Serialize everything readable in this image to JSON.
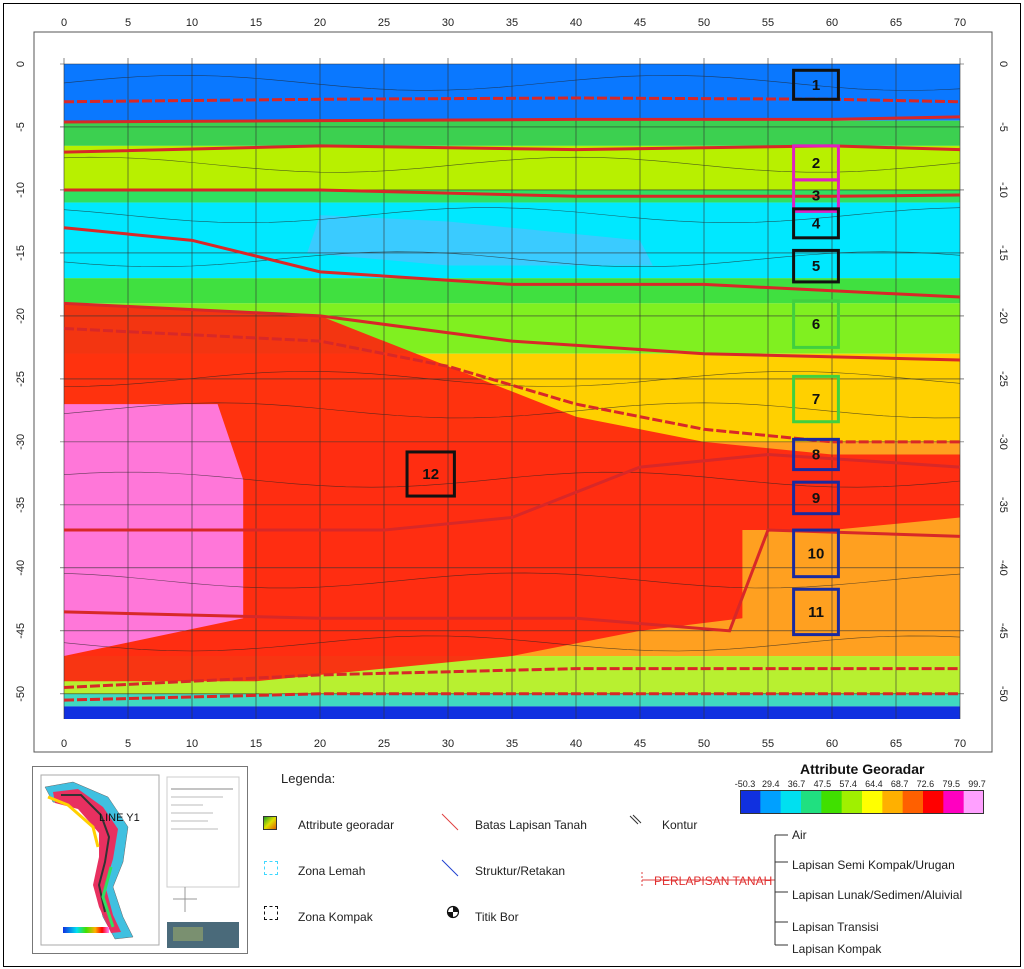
{
  "chart_data": {
    "type": "heatmap",
    "title": "",
    "xlabel": "",
    "ylabel": "",
    "xlim": [
      0,
      70
    ],
    "ylim": [
      -52,
      0
    ],
    "x_ticks": [
      "0",
      "5",
      "10",
      "15",
      "20",
      "25",
      "30",
      "35",
      "40",
      "45",
      "50",
      "55",
      "60",
      "65",
      "70"
    ],
    "y_ticks": [
      "0",
      "-5",
      "-10",
      "-15",
      "-20",
      "-25",
      "-30",
      "-35",
      "-40",
      "-45",
      "-50"
    ],
    "grid": true,
    "colorbar": {
      "title": "Attribute Georadar",
      "labels": [
        "-50.3",
        "29.4",
        "36.7",
        "47.5",
        "57.4",
        "64.4",
        "68.7",
        "72.6",
        "79.5",
        "99.7"
      ],
      "colors": [
        "#1030e0",
        "#00a0ff",
        "#00e0f0",
        "#20e080",
        "#40e000",
        "#a0f000",
        "#ffff00",
        "#ffb000",
        "#ff6000",
        "#ff0000",
        "#ff00c0",
        "#ffa0ff"
      ]
    },
    "bands": [
      {
        "from": 0,
        "to": -4.5,
        "color": "#0a78ff"
      },
      {
        "from": -4.5,
        "to": -6.5,
        "color": "#3cd050"
      },
      {
        "from": -6.5,
        "to": -10,
        "color": "#b8f000"
      },
      {
        "from": -10,
        "to": -11,
        "color": "#30e060"
      },
      {
        "from": -11,
        "to": -17,
        "color": "#00e8ff"
      },
      {
        "from": -17,
        "to": -19,
        "color": "#40e040"
      },
      {
        "from": -19,
        "to": -23,
        "color": "#80f020"
      },
      {
        "from": -23,
        "to": -30,
        "color": "#ffd000"
      },
      {
        "from": -30,
        "to": -47,
        "color": "#ffa020"
      },
      {
        "from": -47,
        "to": -50,
        "color": "#b8f030"
      },
      {
        "from": -50,
        "to": -51,
        "color": "#40d8c0"
      },
      {
        "from": -51,
        "to": -52,
        "color": "#1030e0"
      }
    ],
    "anomalies": [
      {
        "name": "compact-zone",
        "points": [
          [
            0,
            -19
          ],
          [
            20,
            -20
          ],
          [
            30,
            -24
          ],
          [
            40,
            -28
          ],
          [
            50,
            -30
          ],
          [
            60,
            -31
          ],
          [
            70,
            -31
          ],
          [
            70,
            -36
          ],
          [
            60,
            -37
          ],
          [
            53,
            -37
          ],
          [
            53,
            -44
          ],
          [
            45,
            -45
          ],
          [
            35,
            -47
          ],
          [
            25,
            -48
          ],
          [
            15,
            -49
          ],
          [
            0,
            -49
          ]
        ],
        "color": "#ff2010"
      },
      {
        "name": "soft-zone",
        "points": [
          [
            0,
            -27
          ],
          [
            12,
            -27
          ],
          [
            14,
            -33
          ],
          [
            14,
            -44
          ],
          [
            0,
            -47
          ]
        ],
        "color": "#ff80f0"
      },
      {
        "name": "low-zone",
        "points": [
          [
            20,
            -12
          ],
          [
            30,
            -12.5
          ],
          [
            45,
            -14
          ],
          [
            46,
            -16
          ],
          [
            30,
            -16
          ],
          [
            19,
            -15
          ]
        ],
        "color": "#40c8ff"
      }
    ],
    "layer_boundaries": [
      {
        "points": [
          [
            0,
            -3
          ],
          [
            20,
            -2.8
          ],
          [
            40,
            -2.7
          ],
          [
            60,
            -2.8
          ],
          [
            70,
            -3
          ]
        ],
        "dashed": true
      },
      {
        "points": [
          [
            0,
            -4.6
          ],
          [
            20,
            -4.5
          ],
          [
            40,
            -4.4
          ],
          [
            60,
            -4.4
          ],
          [
            70,
            -4.2
          ]
        ],
        "dashed": false
      },
      {
        "points": [
          [
            0,
            -7
          ],
          [
            20,
            -6.5
          ],
          [
            40,
            -6.8
          ],
          [
            60,
            -6.5
          ],
          [
            70,
            -6.8
          ]
        ],
        "dashed": false
      },
      {
        "points": [
          [
            0,
            -10
          ],
          [
            20,
            -10
          ],
          [
            40,
            -10.5
          ],
          [
            60,
            -10.5
          ],
          [
            70,
            -10.4
          ]
        ],
        "dashed": false
      },
      {
        "points": [
          [
            0,
            -13
          ],
          [
            10,
            -14
          ],
          [
            20,
            -16.5
          ],
          [
            35,
            -17.5
          ],
          [
            50,
            -17.5
          ],
          [
            70,
            -18.5
          ]
        ],
        "dashed": false
      },
      {
        "points": [
          [
            0,
            -19
          ],
          [
            20,
            -20
          ],
          [
            35,
            -22
          ],
          [
            50,
            -23
          ],
          [
            70,
            -23.5
          ]
        ],
        "dashed": false
      },
      {
        "points": [
          [
            0,
            -21
          ],
          [
            20,
            -22
          ],
          [
            30,
            -24
          ],
          [
            40,
            -27
          ],
          [
            50,
            -29
          ],
          [
            60,
            -30
          ],
          [
            70,
            -30
          ]
        ],
        "dashed": true
      },
      {
        "points": [
          [
            0,
            -37
          ],
          [
            25,
            -37
          ],
          [
            35,
            -36
          ],
          [
            40,
            -34
          ],
          [
            45,
            -32
          ],
          [
            55,
            -31
          ],
          [
            70,
            -32
          ]
        ],
        "dashed": false
      },
      {
        "points": [
          [
            0,
            -43.5
          ],
          [
            20,
            -44
          ],
          [
            40,
            -44
          ],
          [
            52,
            -45
          ],
          [
            55,
            -37
          ],
          [
            70,
            -37.5
          ]
        ],
        "dashed": false
      },
      {
        "points": [
          [
            0,
            -49.5
          ],
          [
            20,
            -48.5
          ],
          [
            40,
            -48
          ],
          [
            55,
            -48
          ],
          [
            70,
            -48
          ]
        ],
        "dashed": true
      },
      {
        "points": [
          [
            0,
            -50.5
          ],
          [
            20,
            -50
          ],
          [
            40,
            -50
          ],
          [
            70,
            -50
          ]
        ],
        "dashed": true
      }
    ],
    "boxes": [
      {
        "label": "1",
        "x0": 57,
        "x1": 60.5,
        "y0": -0.5,
        "y1": -2.8,
        "color": "#111111"
      },
      {
        "label": "2",
        "x0": 57,
        "x1": 60.5,
        "y0": -6.5,
        "y1": -9.2,
        "color": "#e020c0"
      },
      {
        "label": "3",
        "x0": 57,
        "x1": 60.5,
        "y0": -9.2,
        "y1": -11.7,
        "color": "#e020c0"
      },
      {
        "label": "4",
        "x0": 57,
        "x1": 60.5,
        "y0": -11.5,
        "y1": -13.8,
        "color": "#111111"
      },
      {
        "label": "5",
        "x0": 57,
        "x1": 60.5,
        "y0": -14.8,
        "y1": -17.3,
        "color": "#111111"
      },
      {
        "label": "6",
        "x0": 57,
        "x1": 60.5,
        "y0": -18.8,
        "y1": -22.5,
        "color": "#40d040"
      },
      {
        "label": "7",
        "x0": 57,
        "x1": 60.5,
        "y0": -24.8,
        "y1": -28.4,
        "color": "#40d040"
      },
      {
        "label": "8",
        "x0": 57,
        "x1": 60.5,
        "y0": -29.8,
        "y1": -32.2,
        "color": "#1a2aa0"
      },
      {
        "label": "9",
        "x0": 57,
        "x1": 60.5,
        "y0": -33.2,
        "y1": -35.7,
        "color": "#1a2aa0"
      },
      {
        "label": "10",
        "x0": 57,
        "x1": 60.5,
        "y0": -37,
        "y1": -40.7,
        "color": "#1a2aa0"
      },
      {
        "label": "11",
        "x0": 57,
        "x1": 60.5,
        "y0": -41.7,
        "y1": -45.3,
        "color": "#1a2aa0"
      },
      {
        "label": "12",
        "x0": 26.8,
        "x1": 30.5,
        "y0": -30.8,
        "y1": -34.3,
        "color": "#111111"
      }
    ]
  },
  "legend": {
    "title": "Legenda:",
    "items": {
      "attribute": "Attribute georadar",
      "zona_lemah": "Zona Lemah",
      "zona_kompak": "Zona Kompak",
      "batas": "Batas Lapisan Tanah",
      "struktur": "Struktur/Retakan",
      "titik_bor": "Titik Bor",
      "kontur": "Kontur"
    }
  },
  "layers": {
    "title": "PERLAPISAN TANAH",
    "items": [
      "Air",
      "Lapisan Semi Kompak/Urugan",
      "Lapisan Lunak/Sedimen/Aluivial",
      "Lapisan Transisi",
      "Lapisan Kompak"
    ]
  },
  "minimap": {
    "line_label": "LINE Y1"
  }
}
